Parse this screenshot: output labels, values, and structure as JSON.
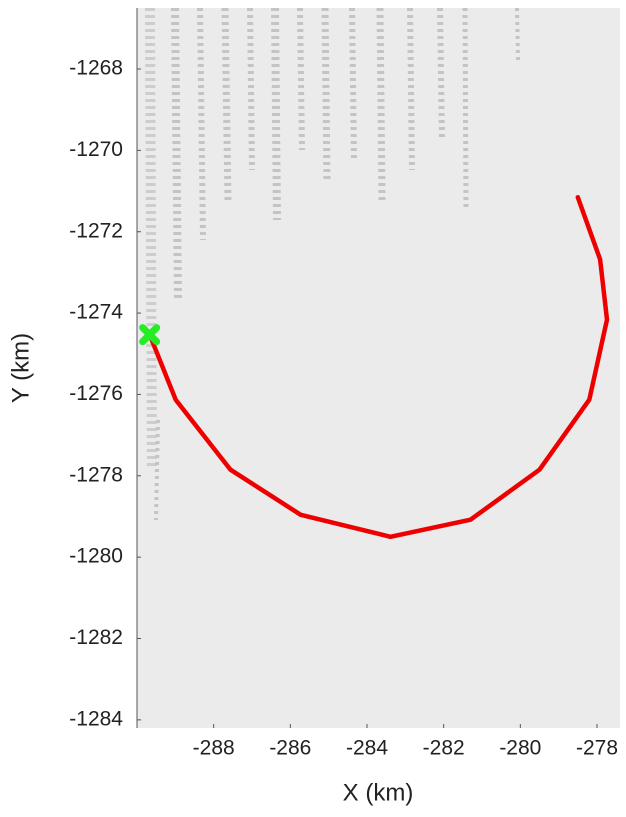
{
  "chart_data": {
    "type": "line",
    "xlabel": "X (km)",
    "ylabel": "Y (km)",
    "xlim": [
      -290,
      -277.4
    ],
    "ylim": [
      -1284.2,
      -1266.5
    ],
    "xticks": [
      -288,
      -286,
      -284,
      -282,
      -280,
      -278
    ],
    "yticks": [
      -1268,
      -1270,
      -1272,
      -1274,
      -1276,
      -1278,
      -1280,
      -1282,
      -1284
    ],
    "series": [
      {
        "style": "line",
        "color": "#ee0000",
        "x": [
          -289.67,
          -288.99,
          -287.56,
          -285.73,
          -283.39,
          -281.3,
          -279.5,
          -278.2,
          -277.74,
          -277.92,
          -278.5
        ],
        "y": [
          -1274.53,
          -1276.13,
          -1277.85,
          -1278.96,
          -1279.5,
          -1279.08,
          -1277.85,
          -1276.13,
          -1274.16,
          -1272.68,
          -1271.15
        ]
      },
      {
        "style": "marker",
        "color": "#22ee22",
        "x": [
          -289.67
        ],
        "y": [
          -1274.53
        ]
      }
    ]
  }
}
